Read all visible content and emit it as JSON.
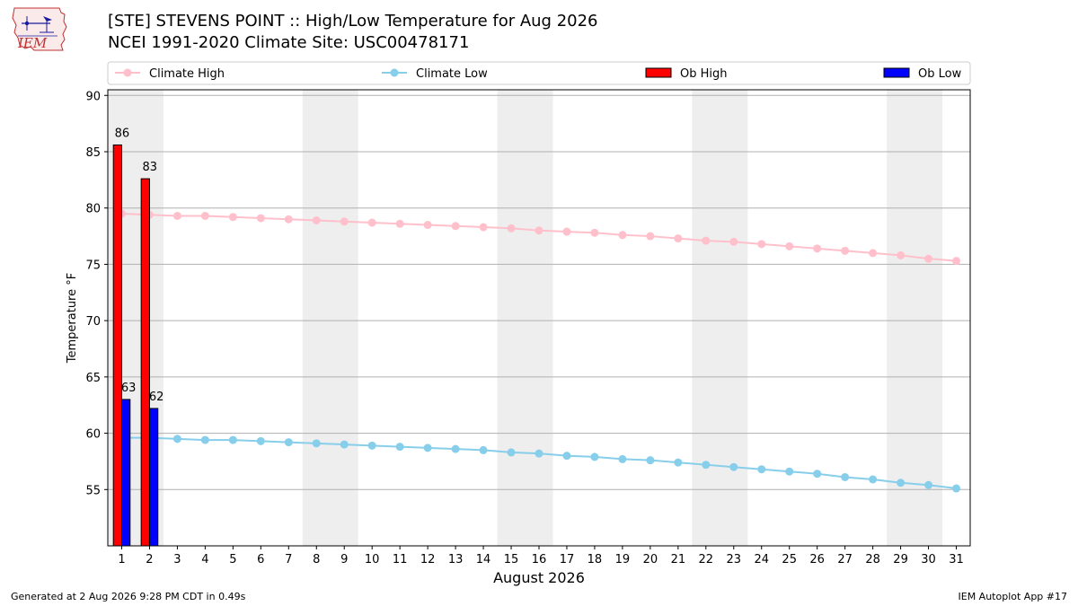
{
  "header": {
    "title_line1": "[STE] STEVENS POINT :: High/Low Temperature for Aug 2026",
    "title_line2": "NCEI 1991-2020 Climate Site: USC00478171",
    "logo_text": "IEM"
  },
  "footer": {
    "generated": "Generated at 2 Aug 2026 9:28 PM CDT in 0.49s",
    "app": "IEM Autoplot App #17"
  },
  "chart_data": {
    "type": "bar",
    "xlabel": "August 2026",
    "ylabel": "Temperature °F",
    "ylim": [
      50,
      90.5
    ],
    "xlim": [
      0.5,
      31.5
    ],
    "yticks": [
      55,
      60,
      65,
      70,
      75,
      80,
      85,
      90
    ],
    "days": [
      1,
      2,
      3,
      4,
      5,
      6,
      7,
      8,
      9,
      10,
      11,
      12,
      13,
      14,
      15,
      16,
      17,
      18,
      19,
      20,
      21,
      22,
      23,
      24,
      25,
      26,
      27,
      28,
      29,
      30,
      31
    ],
    "weekend_shading": [
      [
        1,
        2
      ],
      [
        8,
        9
      ],
      [
        15,
        16
      ],
      [
        22,
        23
      ],
      [
        29,
        30
      ]
    ],
    "grid": "horizontal",
    "legend_position": "top",
    "series": [
      {
        "name": "Climate High",
        "kind": "line",
        "color": "#ffc0cb",
        "values": [
          79.5,
          79.4,
          79.3,
          79.3,
          79.2,
          79.1,
          79.0,
          78.9,
          78.8,
          78.7,
          78.6,
          78.5,
          78.4,
          78.3,
          78.2,
          78.0,
          77.9,
          77.8,
          77.6,
          77.5,
          77.3,
          77.1,
          77.0,
          76.8,
          76.6,
          76.4,
          76.2,
          76.0,
          75.8,
          75.5,
          75.3
        ]
      },
      {
        "name": "Climate Low",
        "kind": "line",
        "color": "#87ceeb",
        "values": [
          59.6,
          59.6,
          59.5,
          59.4,
          59.4,
          59.3,
          59.2,
          59.1,
          59.0,
          58.9,
          58.8,
          58.7,
          58.6,
          58.5,
          58.3,
          58.2,
          58.0,
          57.9,
          57.7,
          57.6,
          57.4,
          57.2,
          57.0,
          56.8,
          56.6,
          56.4,
          56.1,
          55.9,
          55.6,
          55.4,
          55.1
        ]
      },
      {
        "name": "Ob High",
        "kind": "bar",
        "color": "#ff0000",
        "values": [
          85.6,
          82.6
        ],
        "labels": [
          "86",
          "83"
        ]
      },
      {
        "name": "Ob Low",
        "kind": "bar",
        "color": "#0000ff",
        "values": [
          63.0,
          62.2
        ],
        "labels": [
          "63",
          "62"
        ]
      }
    ]
  }
}
